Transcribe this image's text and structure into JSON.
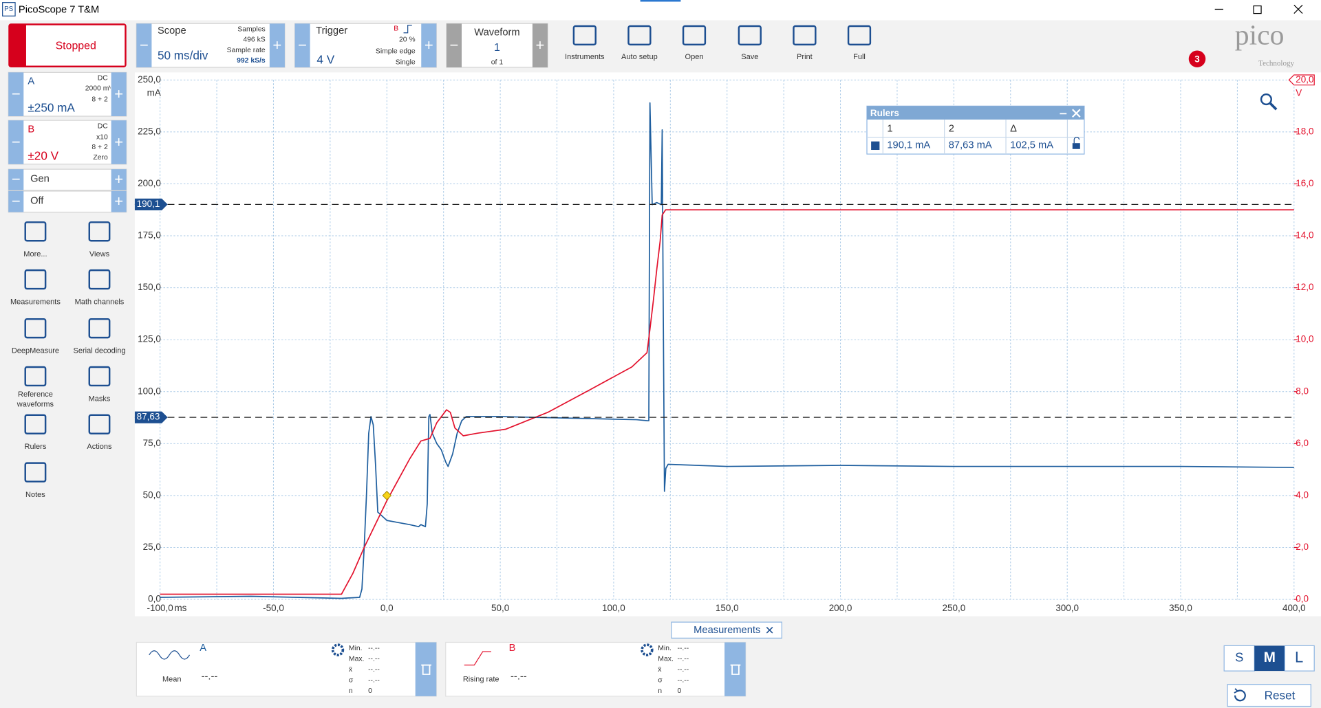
{
  "window": {
    "title": "PicoScope 7 T&M"
  },
  "toolbar": {
    "status": "Stopped",
    "scope": {
      "label": "Scope",
      "timebase": "50 ms/div",
      "samples_label": "Samples",
      "samples": "496 kS",
      "sample_rate_label": "Sample rate",
      "sample_rate": "992 kS/s"
    },
    "trigger": {
      "label": "Trigger",
      "level": "4 V",
      "channel": "B",
      "pretrigger": "20 %",
      "mode": "Simple edge",
      "type": "Single"
    },
    "waveform": {
      "label": "Waveform",
      "current": "1",
      "count": "of 1"
    },
    "tools": [
      "Instruments",
      "Auto setup",
      "Open",
      "Save",
      "Print",
      "Full"
    ],
    "notifications": "3",
    "logo": "pico",
    "logo_sub": "Technology"
  },
  "channels": [
    {
      "coupling": "DC",
      "probe": "2000 mV",
      "resolution": "8 + 2",
      "range": "±250 mA"
    },
    {
      "coupling": "DC",
      "probe": "x10",
      "resolution": "8 + 2",
      "offset": "Zero",
      "range": "±20 V"
    }
  ],
  "generator": {
    "label": "Gen",
    "state": "Off"
  },
  "sidebar_tools": [
    "More...",
    "Views",
    "Measurements",
    "Math channels",
    "DeepMeasure",
    "Serial decoding",
    "Reference waveforms",
    "Masks",
    "Rulers",
    "Actions",
    "Notes"
  ],
  "chart_data": {
    "type": "line",
    "x_unit": "ms",
    "y_unit": "mA",
    "y2_unit": "V",
    "grid": true,
    "xlim": [
      -100,
      400
    ],
    "xticks": [
      {
        "value": -100,
        "label": "-100,0"
      },
      {
        "value": -50,
        "label": "-50,0"
      },
      {
        "value": 0,
        "label": "0,0"
      },
      {
        "value": 50,
        "label": "50,0"
      },
      {
        "value": 100,
        "label": "100,0"
      },
      {
        "value": 150,
        "label": "150,0"
      },
      {
        "value": 200,
        "label": "200,0"
      },
      {
        "value": 250,
        "label": "250,0"
      },
      {
        "value": 300,
        "label": "300,0"
      },
      {
        "value": 350,
        "label": "350,0"
      },
      {
        "value": 400,
        "label": "400,0"
      }
    ],
    "ylim": [
      0,
      250
    ],
    "yticks": [
      {
        "value": 0,
        "label": "0,0"
      },
      {
        "value": 25,
        "label": "25,0"
      },
      {
        "value": 50,
        "label": "50,0"
      },
      {
        "value": 75,
        "label": "75,0"
      },
      {
        "value": 100,
        "label": "100,0"
      },
      {
        "value": 125,
        "label": "125,0"
      },
      {
        "value": 150,
        "label": "150,0"
      },
      {
        "value": 175,
        "label": "175,0"
      },
      {
        "value": 200,
        "label": "200,0"
      },
      {
        "value": 225,
        "label": "225,0"
      },
      {
        "value": 250,
        "label": "250,0"
      }
    ],
    "y2lim": [
      0,
      20
    ],
    "y2ticks": [
      {
        "value": 0,
        "label": "0,0"
      },
      {
        "value": 2,
        "label": "2,0"
      },
      {
        "value": 4,
        "label": "4,0"
      },
      {
        "value": 6,
        "label": "6,0"
      },
      {
        "value": 8,
        "label": "8,0"
      },
      {
        "value": 10,
        "label": "10,0"
      },
      {
        "value": 12,
        "label": "12,0"
      },
      {
        "value": 14,
        "label": "14,0"
      },
      {
        "value": 16,
        "label": "16,0"
      },
      {
        "value": 18,
        "label": "18,0"
      },
      {
        "value": 20,
        "label": "20,0"
      }
    ],
    "series": [
      {
        "name": "A",
        "color": "#1f5f9f",
        "x": [
          -100,
          -60,
          -20,
          -12,
          -11,
          -10,
          -9,
          -8,
          -7,
          -6,
          -5,
          -4,
          0,
          5,
          10,
          14,
          15,
          17,
          17.8,
          18.5,
          19,
          20,
          22,
          24,
          26,
          27,
          29,
          31,
          33,
          35,
          50,
          70,
          90,
          110,
          115,
          115.5,
          116,
          117,
          119,
          121,
          121.4,
          121.8,
          122.4,
          123,
          124,
          150,
          200,
          250,
          300,
          350,
          400
        ],
        "values": [
          1,
          1.5,
          0.5,
          1,
          5,
          25,
          50,
          80,
          88,
          84,
          65,
          42,
          38,
          37,
          36,
          35,
          36,
          35,
          46,
          88,
          89,
          80,
          75,
          72,
          66,
          64,
          70,
          80,
          86,
          88,
          88,
          87.5,
          87,
          86.5,
          86,
          86,
          239,
          190,
          191,
          190,
          226,
          150,
          52,
          63,
          65,
          64,
          64.5,
          64,
          64,
          64,
          63.5
        ]
      },
      {
        "name": "B",
        "color": "#e3122d",
        "axis": "y2",
        "x": [
          -100,
          -20,
          -15,
          -10,
          -5,
          0,
          5,
          10,
          15,
          19,
          22,
          26.3,
          28,
          30,
          33.7,
          40,
          52.3,
          70.9,
          89.5,
          108,
          114.7,
          116,
          117.5,
          119,
          120.5,
          121.4,
          122.9,
          150,
          200,
          300,
          400
        ],
        "values": [
          0.2,
          0.2,
          1.0,
          2.0,
          2.9,
          3.8,
          4.6,
          5.4,
          6.1,
          6.2,
          6.8,
          7.3,
          7.2,
          6.6,
          6.3,
          6.4,
          6.55,
          7.2,
          8.07,
          8.95,
          9.5,
          10.4,
          11.5,
          12.7,
          13.8,
          14.8,
          15.0,
          15.0,
          15.0,
          15.0,
          15.0
        ]
      }
    ],
    "rulers": [
      {
        "value": 190.1,
        "label": "190,1"
      },
      {
        "value": 87.63,
        "label": "87,63"
      }
    ],
    "trigger_point": {
      "x": 0,
      "y2": 4
    }
  },
  "rulers_panel": {
    "title": "Rulers",
    "headers": [
      "1",
      "2",
      "Δ"
    ],
    "values": [
      "190,1 mA",
      "87,63 mA",
      "102,5 mA"
    ]
  },
  "measurements": {
    "tab": "Measurements",
    "cards": [
      {
        "channel": "A",
        "name": "Mean",
        "value": "--.--",
        "stats": [
          [
            "Min.",
            "--.--"
          ],
          [
            "Max.",
            "--.--"
          ],
          [
            "x̄",
            "--.--"
          ],
          [
            "σ",
            "--.--"
          ],
          [
            "n",
            "0"
          ]
        ]
      },
      {
        "channel": "B",
        "name": "Rising rate",
        "value": "--.--",
        "stats": [
          [
            "Min.",
            "--.--"
          ],
          [
            "Max.",
            "--.--"
          ],
          [
            "x̄",
            "--.--"
          ],
          [
            "σ",
            "--.--"
          ],
          [
            "n",
            "0"
          ]
        ]
      }
    ]
  },
  "view_sizes": [
    "S",
    "M",
    "L"
  ],
  "reset": "Reset"
}
